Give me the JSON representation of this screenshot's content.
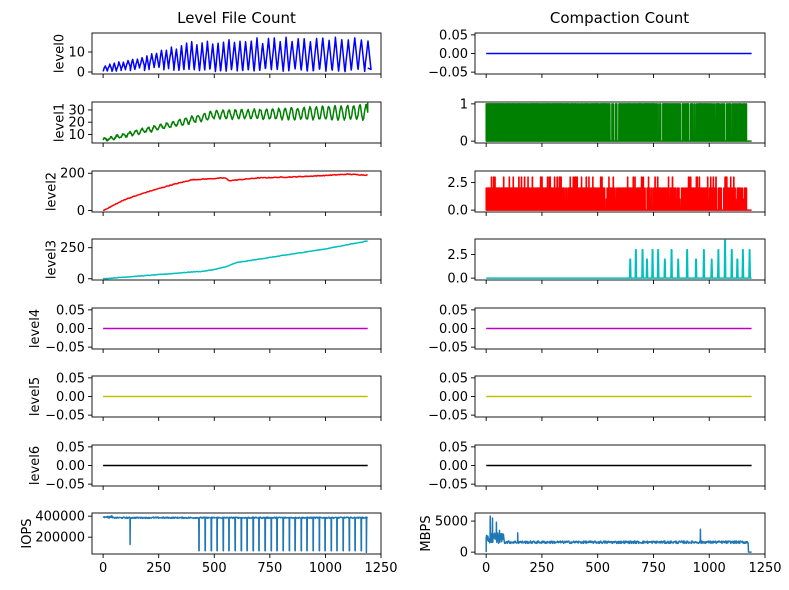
{
  "chart_data": {
    "type": "line",
    "column_titles": [
      "Level File Count",
      "Compaction Count"
    ],
    "xlim": [
      -50,
      1250
    ],
    "x_ticks": [
      0,
      250,
      500,
      750,
      1000,
      1250
    ],
    "x_tick_labels": [
      "0",
      "250",
      "500",
      "750",
      "1000",
      "1250"
    ],
    "panels": [
      {
        "column": 0,
        "row": 0,
        "ylabel": "level0",
        "color": "#0000ff",
        "ylim": [
          -1,
          19.5
        ],
        "y_ticks": [
          0,
          10
        ],
        "y_tick_labels": [
          "0",
          "10"
        ],
        "series": {
          "kind": "sawtooth",
          "x_end": 1190,
          "n": 600,
          "period_start": 20,
          "period_end": 30,
          "upper_start": 3,
          "upper_end": 18.5,
          "upper_rise": 400,
          "lower": 0
        }
      },
      {
        "column": 0,
        "row": 1,
        "ylabel": "level1",
        "color": "#008000",
        "ylim": [
          3,
          36.5
        ],
        "y_ticks": [
          10,
          20,
          30
        ],
        "y_tick_labels": [
          "10",
          "20",
          "30"
        ],
        "series": {
          "kind": "oscillating_trend",
          "x_end": 1190,
          "n": 600,
          "base_start": 5.5,
          "base_end": 28,
          "base_rise": 500,
          "amp_start": 1,
          "amp_end": 6,
          "period": 28
        }
      },
      {
        "column": 0,
        "row": 2,
        "ylabel": "level2",
        "color": "#ff0000",
        "ylim": [
          -8,
          212
        ],
        "y_ticks": [
          0,
          200
        ],
        "y_tick_labels": [
          "0",
          "200"
        ],
        "series": {
          "kind": "growth",
          "x_end": 1190,
          "n": 300,
          "knots_x": [
            0,
            100,
            200,
            300,
            400,
            550,
            565,
            700,
            850,
            1000,
            1100,
            1190
          ],
          "knots_y": [
            0,
            60,
            100,
            135,
            165,
            175,
            160,
            175,
            180,
            188,
            195,
            190
          ]
        }
      },
      {
        "column": 0,
        "row": 3,
        "ylabel": "level3",
        "color": "#00bfbf",
        "ylim": [
          -10,
          320
        ],
        "y_ticks": [
          0,
          250
        ],
        "y_tick_labels": [
          "0",
          "250"
        ],
        "series": {
          "kind": "growth",
          "x_end": 1190,
          "n": 300,
          "knots_x": [
            0,
            150,
            300,
            400,
            450,
            500,
            550,
            600,
            800,
            1000,
            1190
          ],
          "knots_y": [
            0,
            20,
            40,
            55,
            60,
            75,
            95,
            130,
            185,
            240,
            305
          ]
        }
      },
      {
        "column": 0,
        "row": 4,
        "ylabel": "level4",
        "color": "#bf00bf",
        "ylim": [
          -0.055,
          0.055
        ],
        "y_ticks": [
          -0.05,
          0,
          0.05
        ],
        "y_tick_labels": [
          "−0.05",
          "0.00",
          "0.05"
        ],
        "series": {
          "kind": "constant",
          "x_end": 1190,
          "value": 0
        }
      },
      {
        "column": 0,
        "row": 5,
        "ylabel": "level5",
        "color": "#bfbf00",
        "ylim": [
          -0.055,
          0.055
        ],
        "y_ticks": [
          -0.05,
          0,
          0.05
        ],
        "y_tick_labels": [
          "−0.05",
          "0.00",
          "0.05"
        ],
        "series": {
          "kind": "constant",
          "x_end": 1190,
          "value": 0
        }
      },
      {
        "column": 0,
        "row": 6,
        "ylabel": "level6",
        "color": "#000000",
        "ylim": [
          -0.055,
          0.055
        ],
        "y_ticks": [
          -0.05,
          0,
          0.05
        ],
        "y_tick_labels": [
          "−0.05",
          "0.00",
          "0.05"
        ],
        "series": {
          "kind": "constant",
          "x_end": 1190,
          "value": 0
        }
      },
      {
        "column": 0,
        "row": 7,
        "ylabel": "IOPS",
        "color": "#1f77b4",
        "ylim": [
          40000,
          430000
        ],
        "y_ticks": [
          200000,
          400000
        ],
        "y_tick_labels": [
          "200000",
          "400000"
        ],
        "series": {
          "kind": "iops",
          "x_end": 1190,
          "n": 600,
          "base": 385000,
          "noise": 12000,
          "dip_start": 430,
          "dip_period": 27,
          "dip_value": 70000,
          "isolated_dips": [
            {
              "x": 120,
              "value": 130000
            },
            {
              "x": 1185,
              "value": 55000
            }
          ]
        }
      },
      {
        "column": 1,
        "row": 0,
        "ylabel": "",
        "color": "#0000ff",
        "ylim": [
          -0.055,
          0.055
        ],
        "y_ticks": [
          -0.05,
          0,
          0.05
        ],
        "y_tick_labels": [
          "−0.05",
          "0.00",
          "0.05"
        ],
        "series": {
          "kind": "constant",
          "x_end": 1190,
          "value": 0
        }
      },
      {
        "column": 1,
        "row": 1,
        "ylabel": "",
        "color": "#008000",
        "ylim": [
          -0.05,
          1.05
        ],
        "y_ticks": [
          0,
          1
        ],
        "y_tick_labels": [
          "0",
          "1"
        ],
        "series": {
          "kind": "pulses",
          "x_start": 0,
          "x_end": 1190,
          "active_end": 1170,
          "n": 600,
          "values": [
            1
          ],
          "density_start": 1.0,
          "density_end": 0.45,
          "tail": 0
        }
      },
      {
        "column": 1,
        "row": 2,
        "ylabel": "",
        "color": "#ff0000",
        "ylim": [
          -0.17,
          3.55
        ],
        "y_ticks": [
          0,
          2.5
        ],
        "y_tick_labels": [
          "0.0",
          "2.5"
        ],
        "series": {
          "kind": "pulses",
          "x_start": 0,
          "x_end": 1190,
          "active_end": 1170,
          "n": 600,
          "values": [
            1,
            2,
            2,
            2,
            2,
            2,
            2,
            3
          ],
          "density_start": 1.0,
          "density_end": 0.6,
          "tail": 0
        }
      },
      {
        "column": 1,
        "row": 3,
        "ylabel": "",
        "color": "#00bfbf",
        "ylim": [
          -0.2,
          4.15
        ],
        "y_ticks": [
          0,
          2.5
        ],
        "y_tick_labels": [
          "0.0",
          "2.5"
        ],
        "series": {
          "kind": "sparse_pulses",
          "x_end": 1190,
          "pulses": [
            {
              "x": 645,
              "v": 2
            },
            {
              "x": 670,
              "v": 3
            },
            {
              "x": 700,
              "v": 3
            },
            {
              "x": 720,
              "v": 2
            },
            {
              "x": 745,
              "v": 3
            },
            {
              "x": 770,
              "v": 3
            },
            {
              "x": 800,
              "v": 2
            },
            {
              "x": 830,
              "v": 3
            },
            {
              "x": 860,
              "v": 2
            },
            {
              "x": 900,
              "v": 3
            },
            {
              "x": 940,
              "v": 2
            },
            {
              "x": 975,
              "v": 3
            },
            {
              "x": 1010,
              "v": 2
            },
            {
              "x": 1040,
              "v": 3
            },
            {
              "x": 1070,
              "v": 4
            },
            {
              "x": 1100,
              "v": 3
            },
            {
              "x": 1125,
              "v": 2
            },
            {
              "x": 1150,
              "v": 3
            },
            {
              "x": 1180,
              "v": 3
            }
          ]
        }
      },
      {
        "column": 1,
        "row": 4,
        "ylabel": "",
        "color": "#bf00bf",
        "ylim": [
          -0.055,
          0.055
        ],
        "y_ticks": [
          -0.05,
          0,
          0.05
        ],
        "y_tick_labels": [
          "−0.05",
          "0.00",
          "0.05"
        ],
        "series": {
          "kind": "constant",
          "x_end": 1190,
          "value": 0
        }
      },
      {
        "column": 1,
        "row": 5,
        "ylabel": "",
        "color": "#bfbf00",
        "ylim": [
          -0.055,
          0.055
        ],
        "y_ticks": [
          -0.05,
          0,
          0.05
        ],
        "y_tick_labels": [
          "−0.05",
          "0.00",
          "0.05"
        ],
        "series": {
          "kind": "constant",
          "x_end": 1190,
          "value": 0
        }
      },
      {
        "column": 1,
        "row": 6,
        "ylabel": "",
        "color": "#000000",
        "ylim": [
          -0.055,
          0.055
        ],
        "y_ticks": [
          -0.05,
          0,
          0.05
        ],
        "y_tick_labels": [
          "−0.05",
          "0.00",
          "0.05"
        ],
        "series": {
          "kind": "constant",
          "x_end": 1190,
          "value": 0
        }
      },
      {
        "column": 1,
        "row": 7,
        "ylabel": "MBPS",
        "color": "#1f77b4",
        "ylim": [
          -300,
          6300
        ],
        "y_ticks": [
          0,
          5000
        ],
        "y_tick_labels": [
          "0",
          "5000"
        ],
        "series": {
          "kind": "mbps",
          "x_end": 1190,
          "n": 600,
          "base": 1600,
          "noise": 400,
          "early_spikes": [
            {
              "x": 18,
              "value": 5800
            },
            {
              "x": 28,
              "value": 5500
            },
            {
              "x": 45,
              "value": 4800
            },
            {
              "x": 60,
              "value": 3500
            },
            {
              "x": 140,
              "value": 3100
            },
            {
              "x": 960,
              "value": 3700
            }
          ],
          "end_x": 1175
        }
      }
    ]
  }
}
